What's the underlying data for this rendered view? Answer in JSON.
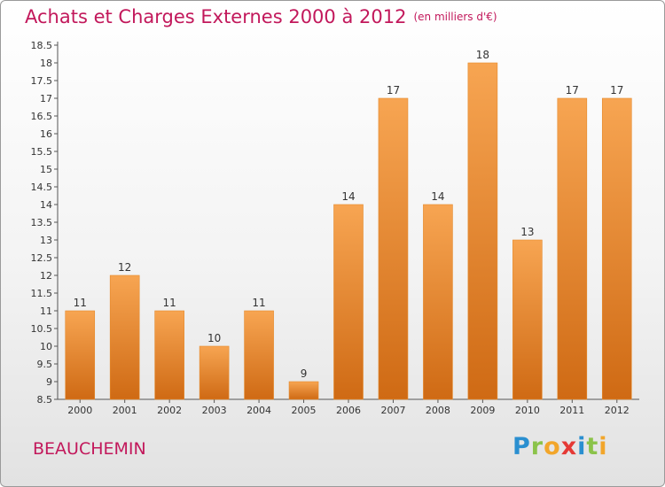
{
  "header": {
    "title": "Achats et Charges Externes 2000 à 2012",
    "unit": "(en milliers d'€)"
  },
  "footer": {
    "commune": "BEAUCHEMIN",
    "logo_text": "Proxiti"
  },
  "colors": {
    "title": "#c2185b",
    "bar_light": "#f7a552",
    "bar_dark": "#cf6a14",
    "logo_blue": "#2a8fd0",
    "logo_green": "#8bc34a",
    "logo_orange": "#f2a62b",
    "logo_red": "#e53935"
  },
  "chart_data": {
    "type": "bar",
    "title": "Achats et Charges Externes 2000 à 2012",
    "subtitle": "(en milliers d'€)",
    "categories": [
      "2000",
      "2001",
      "2002",
      "2003",
      "2004",
      "2005",
      "2006",
      "2007",
      "2008",
      "2009",
      "2010",
      "2011",
      "2012"
    ],
    "values": [
      11,
      12,
      11,
      10,
      11,
      9,
      14,
      17,
      14,
      18,
      13,
      17,
      17
    ],
    "data_labels": [
      "11",
      "12",
      "11",
      "10",
      "11",
      "9",
      "14",
      "17",
      "14",
      "18",
      "13",
      "17",
      "17"
    ],
    "ylim": [
      8.5,
      18.5
    ],
    "yticks": [
      "8.5",
      "9",
      "9.5",
      "10",
      "10.5",
      "11",
      "11.5",
      "12",
      "12.5",
      "13",
      "13.5",
      "14",
      "14.5",
      "15",
      "15.5",
      "16",
      "16.5",
      "17",
      "17.5",
      "18",
      "18.5"
    ],
    "grid": false,
    "legend": "none"
  }
}
